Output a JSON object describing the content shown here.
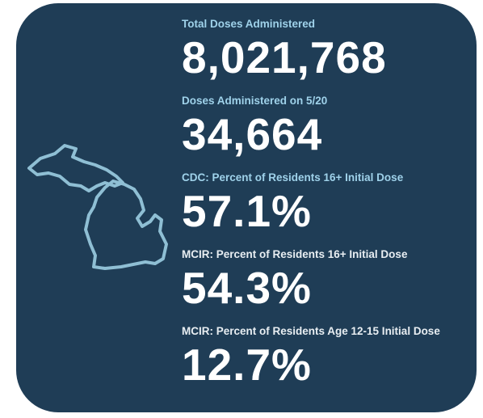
{
  "stats": [
    {
      "label": "Total Doses Administered",
      "value": "8,021,768",
      "label_style": "accent"
    },
    {
      "label": "Doses Administered on 5/20",
      "value": "34,664",
      "label_style": "accent"
    },
    {
      "label": "CDC: Percent of Residents 16+ Initial Dose",
      "value": "57.1%",
      "label_style": "accent"
    },
    {
      "label": "MCIR: Percent of Residents 16+ Initial Dose",
      "value": "54.3%",
      "label_style": "plain"
    },
    {
      "label": "MCIR: Percent of Residents Age 12-15 Initial Dose",
      "value": "12.7%",
      "label_style": "plain"
    }
  ]
}
